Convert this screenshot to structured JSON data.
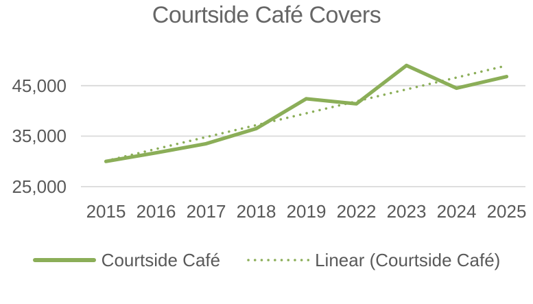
{
  "title": "Courtside Café Covers",
  "legend": {
    "series1_label": "Courtside Café",
    "series2_label": "Linear (Courtside Café)"
  },
  "colors": {
    "series_green": "#8bae58",
    "gridline": "#d9d9d9",
    "axis_text": "#595959",
    "title_text": "#666666",
    "background": "#ffffff"
  },
  "chart_data": {
    "type": "line",
    "title": "Courtside Café Covers",
    "categories": [
      "2015",
      "2016",
      "2017",
      "2018",
      "2019",
      "2022",
      "2023",
      "2024",
      "2025"
    ],
    "series": [
      {
        "name": "Courtside Café",
        "style": "solid",
        "values": [
          30000,
          31700,
          33500,
          36500,
          42400,
          41400,
          49000,
          44500,
          46800
        ]
      },
      {
        "name": "Linear (Courtside Café)",
        "style": "dotted",
        "trendline": true,
        "values": [
          30100,
          32460,
          34820,
          37170,
          39530,
          41890,
          44250,
          46610,
          48970
        ]
      }
    ],
    "y_axis": {
      "min": 25000,
      "max": 50000,
      "major_unit": 10000,
      "gridline_values": [
        25000,
        35000,
        45000
      ],
      "tick_labels": [
        "25,000",
        "35,000",
        "45,000"
      ]
    },
    "x_axis": {
      "tick_labels": [
        "2015",
        "2016",
        "2017",
        "2018",
        "2019",
        "2022",
        "2023",
        "2024",
        "2025"
      ]
    },
    "legend_position": "bottom",
    "grid": true
  }
}
